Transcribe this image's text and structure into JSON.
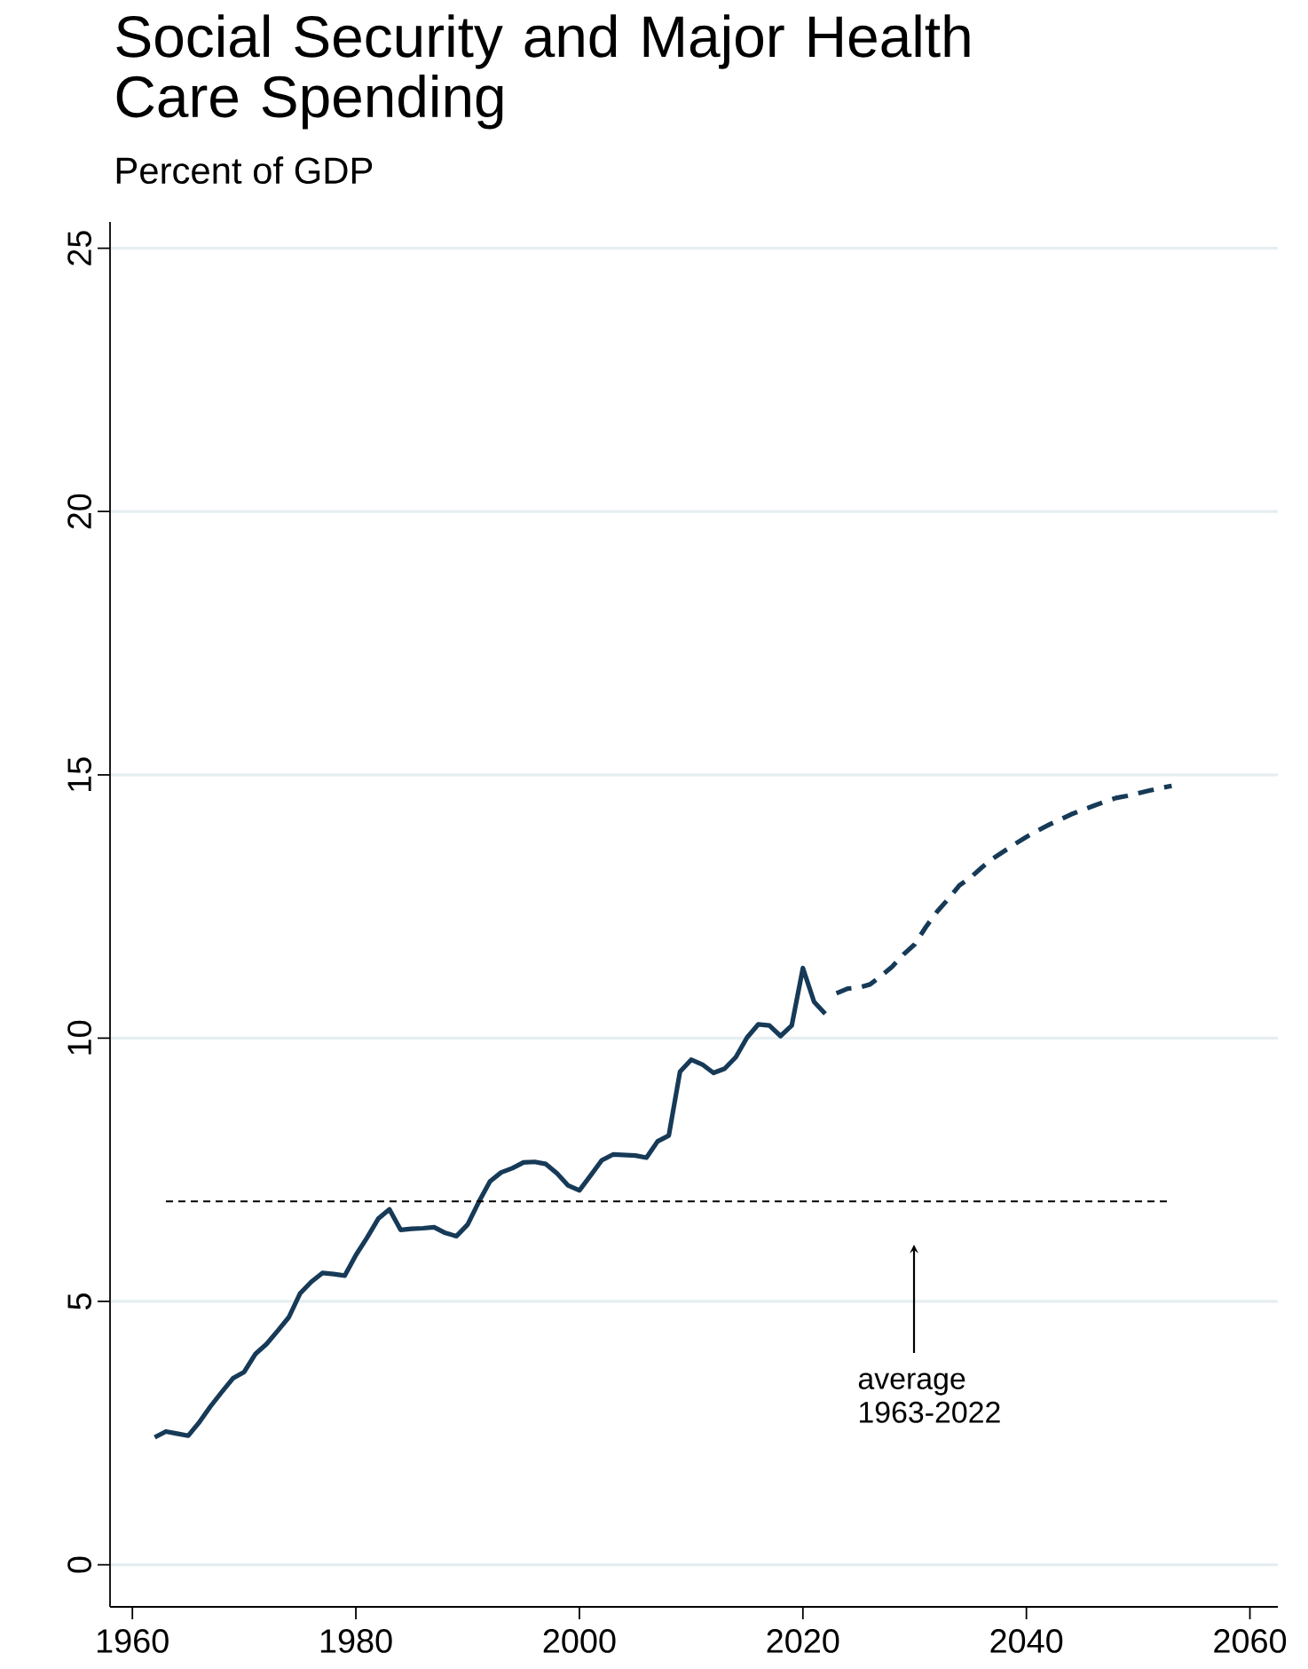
{
  "chart_data": {
    "type": "line",
    "title": "Social Security and Major Health Care Spending",
    "subtitle": "Percent of GDP",
    "xlim": [
      1958,
      2062.5
    ],
    "xticks": [
      1960,
      1980,
      2000,
      2020,
      2040,
      2060
    ],
    "ylim": [
      -0.8,
      25.5
    ],
    "yticks": [
      0,
      5,
      10,
      15,
      20,
      25
    ],
    "grid": "y",
    "series": [
      {
        "color": "#163a57",
        "line_style": "solid",
        "x": [
          1962,
          1963,
          1964,
          1965,
          1966,
          1967,
          1968,
          1969,
          1970,
          1971,
          1972,
          1973,
          1974,
          1975,
          1976,
          1977,
          1978,
          1979,
          1980,
          1981,
          1982,
          1983,
          1984,
          1985,
          1986,
          1987,
          1988,
          1989,
          1990,
          1991,
          1992,
          1993,
          1994,
          1995,
          1996,
          1997,
          1998,
          1999,
          2000,
          2001,
          2002,
          2003,
          2004,
          2005,
          2006,
          2007,
          2008,
          2009,
          2010,
          2011,
          2012,
          2013,
          2014,
          2015,
          2016,
          2017,
          2018,
          2019,
          2020,
          2021,
          2022
        ],
        "values": [
          2.42,
          2.53,
          2.49,
          2.45,
          2.71,
          3.01,
          3.28,
          3.54,
          3.66,
          4.0,
          4.19,
          4.44,
          4.7,
          5.15,
          5.37,
          5.54,
          5.52,
          5.49,
          5.88,
          6.21,
          6.57,
          6.75,
          6.36,
          6.38,
          6.39,
          6.41,
          6.3,
          6.24,
          6.46,
          6.89,
          7.28,
          7.45,
          7.53,
          7.64,
          7.65,
          7.61,
          7.43,
          7.2,
          7.11,
          7.39,
          7.68,
          7.79,
          7.78,
          7.77,
          7.73,
          8.04,
          8.15,
          9.36,
          9.59,
          9.5,
          9.34,
          9.42,
          9.64,
          10.01,
          10.26,
          10.24,
          10.04,
          10.24,
          11.33,
          10.69,
          10.46
        ]
      },
      {
        "color": "#163a57",
        "line_style": "dashed",
        "x": [
          2023,
          2024,
          2025,
          2026,
          2027,
          2028,
          2029,
          2030,
          2031,
          2032,
          2033,
          2034,
          2035,
          2036,
          2037,
          2038,
          2039,
          2040,
          2041,
          2042,
          2043,
          2044,
          2045,
          2046,
          2047,
          2048,
          2049,
          2050,
          2051,
          2052,
          2053
        ],
        "values": [
          10.85,
          10.94,
          10.96,
          11.02,
          11.18,
          11.36,
          11.59,
          11.78,
          12.11,
          12.4,
          12.64,
          12.9,
          13.05,
          13.24,
          13.41,
          13.55,
          13.69,
          13.82,
          13.94,
          14.05,
          14.15,
          14.25,
          14.33,
          14.41,
          14.49,
          14.56,
          14.6,
          14.65,
          14.7,
          14.75,
          14.79
        ]
      },
      {
        "color": "#000000",
        "line_style": "dotted",
        "x": [
          1963,
          2053
        ],
        "values": [
          6.9,
          6.9
        ]
      }
    ],
    "annotations": [
      "average 1963-2022"
    ]
  }
}
